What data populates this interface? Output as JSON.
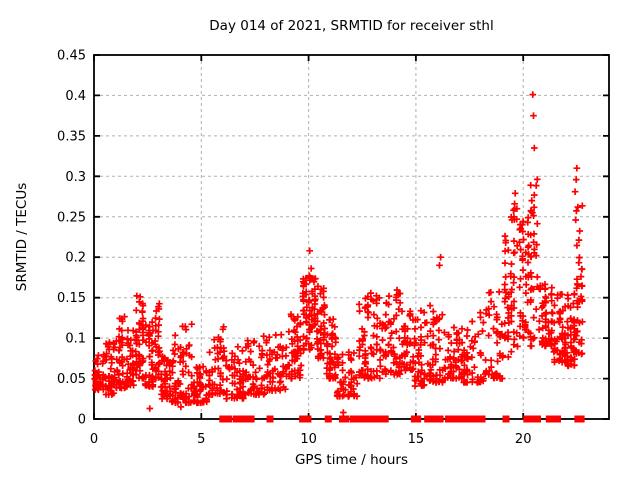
{
  "title": "Day 014 of 2021, SRMTID for receiver sthl",
  "chart_data": {
    "type": "scatter",
    "title": "Day 014 of 2021, SRMTID for receiver sthl",
    "xlabel": "GPS time / hours",
    "ylabel": "SRMTID / TECUs",
    "xlim": [
      0,
      24
    ],
    "ylim": [
      0,
      0.45
    ],
    "x_ticks": [
      0,
      5,
      10,
      15,
      20
    ],
    "x_tick_labels": [
      "0",
      "5",
      "10",
      "15",
      "20"
    ],
    "y_ticks": [
      0,
      0.05,
      0.1,
      0.15,
      0.2,
      0.25,
      0.3,
      0.35,
      0.4,
      0.45
    ],
    "y_tick_labels": [
      "0",
      "0.05",
      "0.1",
      "0.15",
      "0.2",
      "0.25",
      "0.3",
      "0.35",
      "0.4",
      "0.45"
    ],
    "grid": true,
    "legend": "none",
    "marker": "plus",
    "marker_color": "#ff0000",
    "grid_color": "#b0b0b0",
    "border_color": "#000000",
    "series_name": "SRMTID",
    "seed": 20210114,
    "column_width_hours": 0.13,
    "segments_format": [
      "t_start_h",
      "t_end_h",
      "n_points",
      "v_min_TECU",
      "v_max_TECU",
      "low_bias_exponent"
    ],
    "segments": [
      [
        0.0,
        0.5,
        40,
        0.035,
        0.08,
        1.7
      ],
      [
        0.5,
        1.0,
        45,
        0.03,
        0.095,
        1.8
      ],
      [
        1.0,
        1.5,
        45,
        0.038,
        0.128,
        1.8
      ],
      [
        1.5,
        1.9,
        40,
        0.04,
        0.11,
        1.8
      ],
      [
        1.9,
        2.35,
        55,
        0.05,
        0.155,
        1.6
      ],
      [
        2.35,
        2.8,
        45,
        0.04,
        0.12,
        1.8
      ],
      [
        2.8,
        3.1,
        30,
        0.05,
        0.145,
        1.7
      ],
      [
        3.1,
        3.6,
        40,
        0.025,
        0.08,
        1.8
      ],
      [
        3.6,
        4.1,
        40,
        0.02,
        0.105,
        2.0
      ],
      [
        4.1,
        4.6,
        40,
        0.02,
        0.12,
        2.2
      ],
      [
        4.6,
        5.3,
        50,
        0.02,
        0.065,
        1.6
      ],
      [
        5.3,
        6.1,
        50,
        0.03,
        0.115,
        2.0
      ],
      [
        6.1,
        7.0,
        55,
        0.025,
        0.095,
        1.7
      ],
      [
        7.0,
        8.0,
        55,
        0.03,
        0.105,
        1.8
      ],
      [
        8.0,
        9.0,
        60,
        0.035,
        0.11,
        1.8
      ],
      [
        9.0,
        9.7,
        50,
        0.05,
        0.135,
        1.7
      ],
      [
        9.7,
        10.35,
        70,
        0.085,
        0.178,
        1.3
      ],
      [
        10.35,
        10.8,
        45,
        0.075,
        0.165,
        1.5
      ],
      [
        10.8,
        11.3,
        45,
        0.05,
        0.125,
        1.7
      ],
      [
        11.3,
        12.3,
        55,
        0.028,
        0.085,
        1.7
      ],
      [
        12.3,
        12.7,
        35,
        0.05,
        0.15,
        1.6
      ],
      [
        12.7,
        13.4,
        45,
        0.05,
        0.165,
        1.7
      ],
      [
        13.4,
        14.3,
        60,
        0.055,
        0.16,
        1.7
      ],
      [
        14.3,
        14.9,
        40,
        0.06,
        0.14,
        1.7
      ],
      [
        14.9,
        15.6,
        45,
        0.04,
        0.135,
        1.8
      ],
      [
        15.6,
        16.3,
        50,
        0.045,
        0.15,
        1.8
      ],
      [
        16.3,
        17.2,
        55,
        0.05,
        0.125,
        1.7
      ],
      [
        17.2,
        18.2,
        55,
        0.045,
        0.135,
        1.8
      ],
      [
        18.2,
        19.1,
        50,
        0.05,
        0.158,
        1.8
      ],
      [
        19.1,
        19.8,
        55,
        0.075,
        0.27,
        1.5
      ],
      [
        19.8,
        20.3,
        45,
        0.1,
        0.25,
        1.4
      ],
      [
        20.3,
        20.7,
        35,
        0.09,
        0.3,
        1.5
      ],
      [
        20.7,
        21.4,
        60,
        0.09,
        0.168,
        1.5
      ],
      [
        21.4,
        22.0,
        55,
        0.07,
        0.155,
        1.6
      ],
      [
        22.0,
        22.45,
        50,
        0.065,
        0.155,
        1.6
      ],
      [
        22.45,
        22.78,
        40,
        0.08,
        0.27,
        1.5
      ]
    ],
    "notable_points": [
      [
        10.05,
        0.208
      ],
      [
        10.12,
        0.186
      ],
      [
        16.1,
        0.19
      ],
      [
        16.15,
        0.2
      ],
      [
        19.55,
        0.258
      ],
      [
        19.6,
        0.266
      ],
      [
        19.63,
        0.279
      ],
      [
        19.7,
        0.247
      ],
      [
        20.35,
        0.289
      ],
      [
        20.4,
        0.27
      ],
      [
        20.43,
        0.255
      ],
      [
        20.45,
        0.401
      ],
      [
        20.48,
        0.375
      ],
      [
        20.52,
        0.335
      ],
      [
        22.42,
        0.281
      ],
      [
        22.45,
        0.246
      ],
      [
        22.47,
        0.296
      ],
      [
        22.5,
        0.31
      ],
      [
        22.55,
        0.262
      ],
      [
        2.6,
        0.013
      ],
      [
        4.05,
        0.015
      ],
      [
        11.62,
        0.008
      ]
    ],
    "zero_marker_hours": [
      6.0,
      6.12,
      6.27,
      6.62,
      6.87,
      7.08,
      7.32,
      8.2,
      9.72,
      9.84,
      9.97,
      10.92,
      11.58,
      11.73,
      12.08,
      12.2,
      12.45,
      12.57,
      12.75,
      12.87,
      13.12,
      13.27,
      13.42,
      13.57,
      14.93,
      15.08,
      15.55,
      15.68,
      16.0,
      16.13,
      16.52,
      16.68,
      16.92,
      17.07,
      17.25,
      17.42,
      17.72,
      17.9,
      18.08,
      19.2,
      20.17,
      20.32,
      20.52,
      20.67,
      21.22,
      21.38,
      21.6,
      22.55,
      22.7
    ]
  }
}
